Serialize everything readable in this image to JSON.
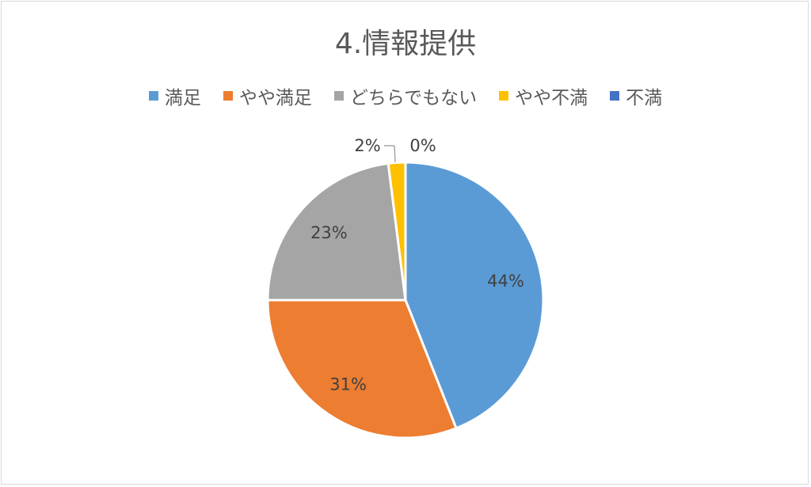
{
  "chart_data": {
    "type": "pie",
    "title": "4.情報提供",
    "legend_position": "top",
    "categories": [
      "満足",
      "やや満足",
      "どちらでもない",
      "やや不満",
      "不満"
    ],
    "values": [
      44,
      31,
      23,
      2,
      0
    ],
    "labels": [
      "44%",
      "31%",
      "23%",
      "2%",
      "0%"
    ],
    "colors": [
      "#5b9bd5",
      "#ed7d31",
      "#a5a5a5",
      "#ffc000",
      "#4472c4"
    ]
  }
}
